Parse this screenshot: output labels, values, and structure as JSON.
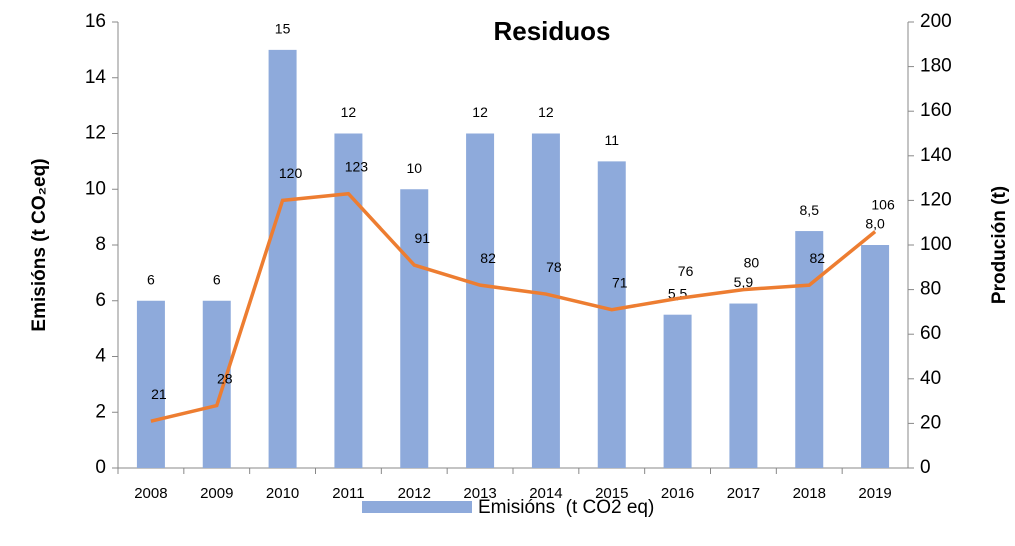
{
  "chart_data": {
    "type": "bar",
    "title": "Residuos",
    "y_label": "Emisións (t CO₂eq)",
    "y2_label": "Produción (t)",
    "categories": [
      "2008",
      "2009",
      "2010",
      "2011",
      "2012",
      "2013",
      "2014",
      "2015",
      "2016",
      "2017",
      "2018",
      "2019"
    ],
    "series": [
      {
        "name": "Emisións  (t CO2 eq)",
        "type": "bar",
        "color": "#8eaadb",
        "values": [
          6,
          6,
          15,
          12,
          10,
          12,
          12,
          11,
          5.5,
          5.9,
          8.5,
          8.0
        ],
        "value_labels": [
          "6",
          "6",
          "15",
          "12",
          "10",
          "12",
          "12",
          "11",
          "5,5",
          "5,9",
          "8,5",
          "8,0"
        ]
      },
      {
        "type": "line",
        "axis": "y2",
        "color": "#ed7d31",
        "values": [
          21,
          28,
          120,
          123,
          91,
          82,
          78,
          71,
          76,
          80,
          82,
          106
        ]
      }
    ],
    "ylim": [
      0,
      16
    ],
    "yticks": [
      0,
      2,
      4,
      6,
      8,
      10,
      12,
      14,
      16
    ],
    "y2lim": [
      0,
      200
    ],
    "y2ticks": [
      0,
      20,
      40,
      60,
      80,
      100,
      120,
      140,
      160,
      180,
      200
    ],
    "legend": "bottom",
    "grid": false
  }
}
